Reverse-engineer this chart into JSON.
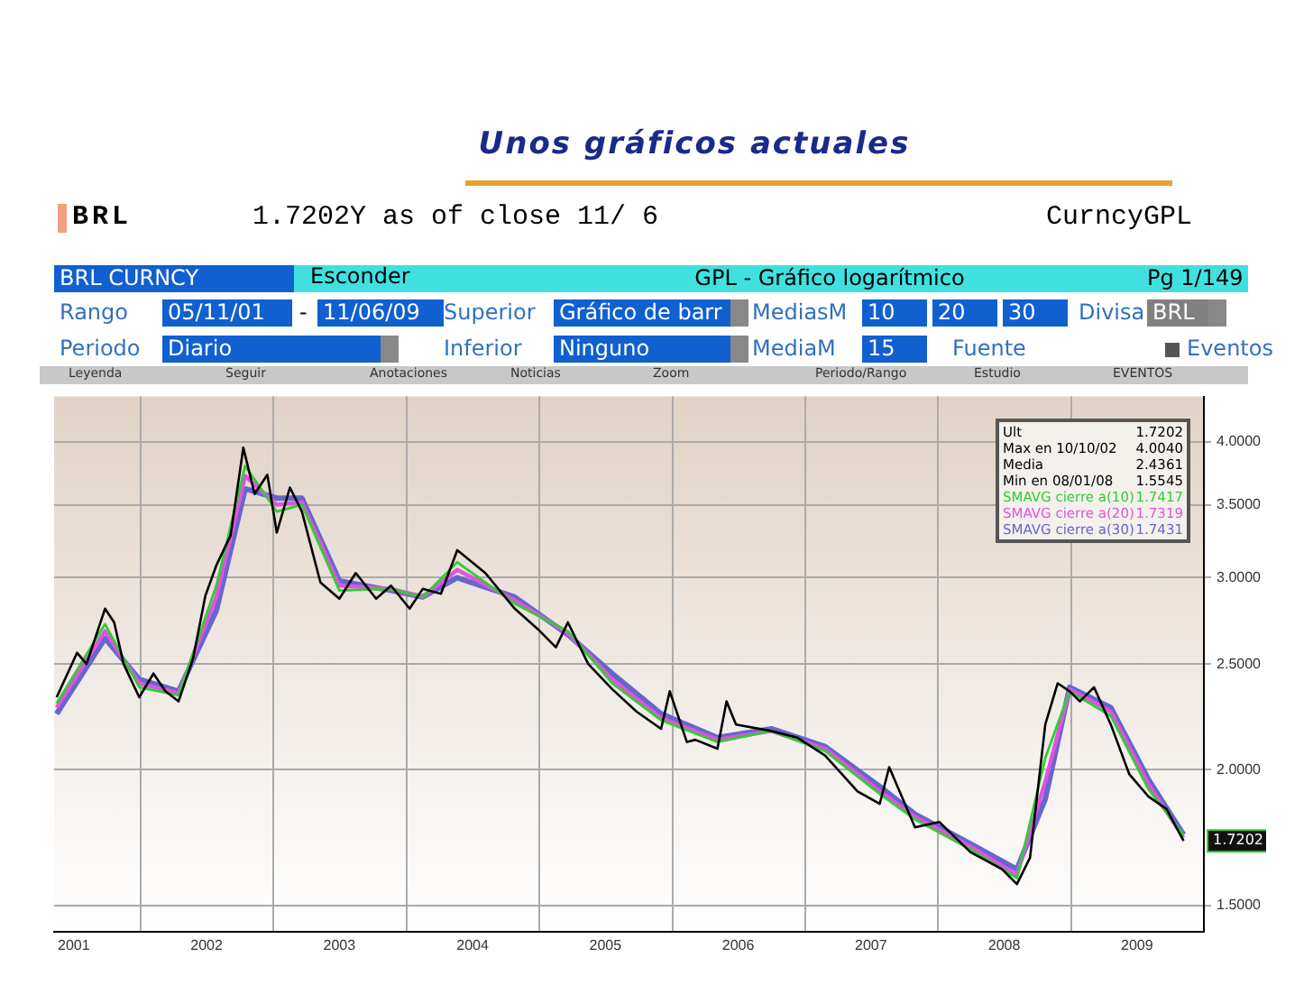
{
  "chart_data": {
    "type": "line",
    "title": "Unos gráficos actuales",
    "log": "y",
    "xlim": [
      "2001-05-08",
      "2010-01-01"
    ],
    "xticks": [
      {
        "value": "2001-07-01",
        "label": "2001"
      },
      {
        "value": "2002-01-01",
        "label": null
      },
      {
        "value": "2002-07-01",
        "label": "2002"
      },
      {
        "value": "2003-01-01",
        "label": null
      },
      {
        "value": "2003-07-01",
        "label": "2003"
      },
      {
        "value": "2004-01-01",
        "label": null
      },
      {
        "value": "2004-07-01",
        "label": "2004"
      },
      {
        "value": "2005-01-01",
        "label": null
      },
      {
        "value": "2005-07-01",
        "label": "2005"
      },
      {
        "value": "2006-01-01",
        "label": null
      },
      {
        "value": "2006-07-01",
        "label": "2006"
      },
      {
        "value": "2007-01-01",
        "label": null
      },
      {
        "value": "2007-07-01",
        "label": "2007"
      },
      {
        "value": "2008-01-01",
        "label": null
      },
      {
        "value": "2008-07-01",
        "label": "2008"
      },
      {
        "value": "2009-01-01",
        "label": null
      },
      {
        "value": "2009-07-01",
        "label": "2009"
      }
    ],
    "ylim": [
      1.42,
      4.4
    ],
    "yticks": [
      {
        "value": 1.5,
        "label": "1.5000"
      },
      {
        "value": 2,
        "label": "2.0000"
      },
      {
        "value": 2.5,
        "label": "2.5000"
      },
      {
        "value": 3,
        "label": "3.0000"
      },
      {
        "value": 3.5,
        "label": "3.5000"
      },
      {
        "value": 4,
        "label": "4.0000"
      }
    ],
    "grid": true,
    "legend": "top right",
    "line_style": "solid",
    "series": [
      {
        "color": "#000000",
        "x": [
          "2001-05-15",
          "2001-07-10",
          "2001-08-05",
          "2001-09-25",
          "2001-10-20",
          "2001-11-15",
          "2001-12-28",
          "2002-02-05",
          "2002-03-10",
          "2002-04-15",
          "2002-05-25",
          "2002-06-28",
          "2002-07-28",
          "2002-09-05",
          "2002-10-10",
          "2002-11-10",
          "2002-12-15",
          "2003-01-10",
          "2003-02-15",
          "2003-03-20",
          "2003-05-10",
          "2003-07-01",
          "2003-08-15",
          "2003-10-10",
          "2003-11-20",
          "2004-01-10",
          "2004-02-15",
          "2004-04-05",
          "2004-05-20",
          "2004-08-05",
          "2004-10-25",
          "2004-12-28",
          "2005-02-15",
          "2005-03-20",
          "2005-05-15",
          "2005-07-20",
          "2005-09-25",
          "2005-12-01",
          "2005-12-25",
          "2006-02-10",
          "2006-03-05",
          "2006-05-05",
          "2006-05-30",
          "2006-06-25",
          "2006-09-30",
          "2006-12-10",
          "2007-02-25",
          "2007-05-25",
          "2007-07-25",
          "2007-08-20",
          "2007-10-30",
          "2008-01-05",
          "2008-03-30",
          "2008-06-25",
          "2008-08-05",
          "2008-09-10",
          "2008-10-22",
          "2008-11-25",
          "2008-12-28",
          "2009-01-25",
          "2009-03-05",
          "2009-04-20",
          "2009-06-10",
          "2009-08-01",
          "2009-09-20",
          "2009-11-06"
        ],
        "values": [
          2.33,
          2.56,
          2.5,
          2.81,
          2.73,
          2.5,
          2.33,
          2.45,
          2.36,
          2.31,
          2.53,
          2.89,
          3.08,
          3.28,
          3.95,
          3.58,
          3.73,
          3.3,
          3.63,
          3.45,
          2.97,
          2.87,
          3.03,
          2.87,
          2.95,
          2.81,
          2.93,
          2.9,
          3.18,
          3.03,
          2.81,
          2.69,
          2.59,
          2.73,
          2.5,
          2.37,
          2.26,
          2.18,
          2.36,
          2.12,
          2.13,
          2.09,
          2.31,
          2.2,
          2.17,
          2.14,
          2.06,
          1.91,
          1.86,
          2.01,
          1.77,
          1.79,
          1.68,
          1.62,
          1.57,
          1.66,
          2.2,
          2.4,
          2.36,
          2.31,
          2.38,
          2.2,
          1.98,
          1.89,
          1.84,
          1.7202
        ]
      },
      {
        "name": "SMAVG cierre a(10)",
        "color": "#33cc33",
        "x": [
          "2001-05-15",
          "2001-09-25",
          "2001-12-28",
          "2002-04-15",
          "2002-07-28",
          "2002-10-15",
          "2003-01-10",
          "2003-03-20",
          "2003-07-01",
          "2003-11-20",
          "2004-02-15",
          "2004-05-20",
          "2004-10-25",
          "2005-03-20",
          "2005-07-20",
          "2005-12-01",
          "2006-05-05",
          "2006-09-30",
          "2007-02-25",
          "2007-07-25",
          "2007-10-30",
          "2008-03-30",
          "2008-08-05",
          "2008-10-22",
          "2008-12-28",
          "2009-04-20",
          "2009-08-01",
          "2009-11-06"
        ],
        "values": [
          2.3,
          2.72,
          2.38,
          2.34,
          2.95,
          3.8,
          3.45,
          3.5,
          2.92,
          2.93,
          2.88,
          3.1,
          2.84,
          2.68,
          2.4,
          2.22,
          2.12,
          2.17,
          2.08,
          1.9,
          1.8,
          1.69,
          1.59,
          2.05,
          2.36,
          2.24,
          1.92,
          1.7417
        ]
      },
      {
        "name": "SMAVG cierre a(20)",
        "color": "#dd55dd",
        "x": [
          "2001-05-15",
          "2001-09-25",
          "2001-12-28",
          "2002-04-15",
          "2002-07-28",
          "2002-10-15",
          "2003-01-10",
          "2003-03-20",
          "2003-07-01",
          "2003-11-20",
          "2004-02-15",
          "2004-05-20",
          "2004-10-25",
          "2005-03-20",
          "2005-07-20",
          "2005-12-01",
          "2006-05-05",
          "2006-09-30",
          "2007-02-25",
          "2007-07-25",
          "2007-10-30",
          "2008-03-30",
          "2008-08-05",
          "2008-10-22",
          "2008-12-28",
          "2009-04-20",
          "2009-08-01",
          "2009-11-06"
        ],
        "values": [
          2.28,
          2.68,
          2.4,
          2.35,
          2.88,
          3.72,
          3.5,
          3.52,
          2.95,
          2.93,
          2.88,
          3.05,
          2.86,
          2.67,
          2.42,
          2.23,
          2.13,
          2.17,
          2.09,
          1.91,
          1.81,
          1.7,
          1.6,
          1.95,
          2.37,
          2.26,
          1.94,
          1.7319
        ]
      },
      {
        "name": "SMAVG cierre a(30)",
        "color": "#6666cc",
        "x": [
          "2001-05-15",
          "2001-09-25",
          "2001-12-28",
          "2002-04-15",
          "2002-07-28",
          "2002-10-15",
          "2003-01-10",
          "2003-03-20",
          "2003-07-01",
          "2003-11-20",
          "2004-02-15",
          "2004-05-20",
          "2004-10-25",
          "2005-03-20",
          "2005-07-20",
          "2005-12-01",
          "2006-05-05",
          "2006-09-30",
          "2007-02-25",
          "2007-07-25",
          "2007-10-30",
          "2008-03-30",
          "2008-08-05",
          "2008-10-22",
          "2008-12-28",
          "2009-04-20",
          "2009-08-01",
          "2009-11-06"
        ],
        "values": [
          2.25,
          2.64,
          2.42,
          2.36,
          2.8,
          3.62,
          3.55,
          3.55,
          2.98,
          2.92,
          2.88,
          3.0,
          2.88,
          2.66,
          2.45,
          2.25,
          2.14,
          2.18,
          2.1,
          1.93,
          1.82,
          1.71,
          1.62,
          1.88,
          2.38,
          2.28,
          1.96,
          1.7431
        ]
      }
    ],
    "annotations": [
      "BRL",
      "1.7202Y as of close 11/ 6",
      "CurncyGPL",
      "BRL CURNCY",
      "Esconder",
      "GPL - Gráfico logarítmico",
      "Pg 1/149",
      "Rango",
      "05/11/01",
      "-",
      "11/06/09",
      "Superior",
      "Gráfico de barr",
      "MediasM",
      "10",
      "20",
      "30",
      "Divisa",
      "BRL",
      "Periodo",
      "Diario",
      "Inferior",
      "Ninguno",
      "MediaM",
      "15",
      "Fuente",
      "Eventos",
      "Leyenda",
      "Seguir",
      "Anotaciones",
      "Noticias",
      "Zoom",
      "Periodo/Rango",
      "Estudio",
      "EVENTOS",
      "Ult",
      "1.7202",
      "Max en 10/10/02",
      "4.0040",
      "Media",
      "2.4361",
      "Min en 08/01/08",
      "1.5545",
      "1.7417",
      "1.7319",
      "1.7431",
      {
        "text": "1.7202",
        "y": 1.7202
      }
    ]
  }
}
